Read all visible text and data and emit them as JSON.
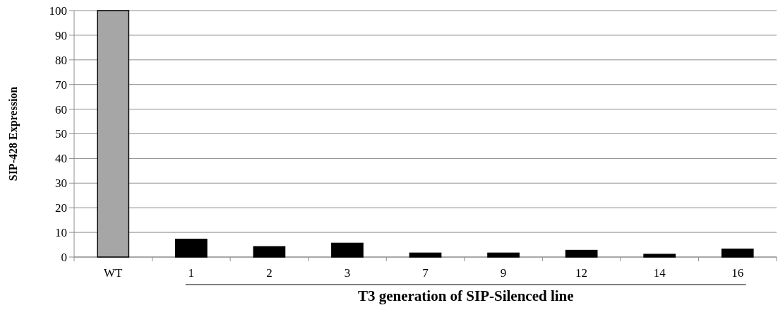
{
  "chart_data": {
    "type": "bar",
    "ylabel": "SIP-428 Expression",
    "xlabel": "T3 generation of SIP-Silenced line",
    "categories": [
      "WT",
      "1",
      "2",
      "3",
      "7",
      "9",
      "12",
      "14",
      "16"
    ],
    "values": [
      100,
      7.2,
      4.2,
      5.6,
      1.6,
      1.6,
      2.7,
      1.1,
      3.2
    ],
    "colors": [
      "#a6a6a6",
      "#000000",
      "#000000",
      "#000000",
      "#000000",
      "#000000",
      "#000000",
      "#000000",
      "#000000"
    ],
    "ylim": [
      0,
      100
    ],
    "yticks": [
      0,
      10,
      20,
      30,
      40,
      50,
      60,
      70,
      80,
      90,
      100
    ],
    "grid": "y"
  }
}
